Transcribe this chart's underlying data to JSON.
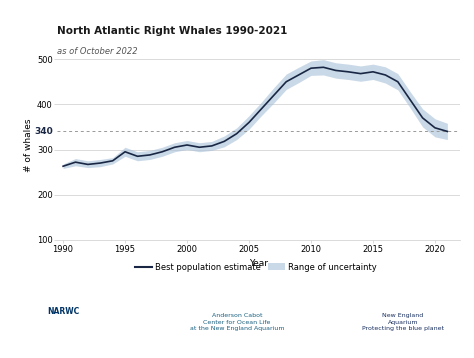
{
  "title": "North Atlantic Right Whales 1990-2021",
  "subtitle": "as of October 2022",
  "xlabel": "Year",
  "ylabel": "# of whales",
  "years": [
    1990,
    1991,
    1992,
    1993,
    1994,
    1995,
    1996,
    1997,
    1998,
    1999,
    2000,
    2001,
    2002,
    2003,
    2004,
    2005,
    2006,
    2007,
    2008,
    2009,
    2010,
    2011,
    2012,
    2013,
    2014,
    2015,
    2016,
    2017,
    2018,
    2019,
    2020,
    2021
  ],
  "best_estimate": [
    263,
    272,
    267,
    270,
    275,
    295,
    285,
    288,
    295,
    305,
    310,
    305,
    308,
    318,
    335,
    360,
    390,
    420,
    450,
    465,
    480,
    482,
    475,
    472,
    468,
    472,
    465,
    450,
    410,
    370,
    348,
    340
  ],
  "upper_bound": [
    268,
    280,
    275,
    278,
    282,
    305,
    295,
    298,
    305,
    315,
    320,
    315,
    318,
    330,
    348,
    375,
    405,
    437,
    467,
    482,
    496,
    499,
    492,
    489,
    485,
    489,
    483,
    468,
    428,
    390,
    368,
    358
  ],
  "lower_bound": [
    258,
    264,
    260,
    262,
    268,
    285,
    275,
    278,
    285,
    295,
    300,
    295,
    298,
    306,
    322,
    345,
    375,
    403,
    433,
    448,
    464,
    465,
    458,
    455,
    451,
    455,
    447,
    432,
    392,
    350,
    328,
    322
  ],
  "dashed_line_value": 340,
  "ylim": [
    100,
    520
  ],
  "yticks": [
    100,
    200,
    300,
    400,
    500
  ],
  "xticks": [
    1990,
    1995,
    2000,
    2005,
    2010,
    2015,
    2020
  ],
  "line_color": "#1a2744",
  "fill_color": "#a8c0d8",
  "dashed_color": "#999999",
  "background_color": "#ffffff",
  "grid_color": "#cccccc",
  "title_fontsize": 7.5,
  "subtitle_fontsize": 6,
  "axis_label_fontsize": 6.5,
  "tick_fontsize": 6,
  "dashed_label": "340",
  "legend_line_label": "Best population estimate",
  "legend_fill_label": "Range of uncertainty",
  "narwc_text": "NARWC",
  "anderson_text": "Anderson Cabot\nCenter for Ocean Life\nat the New England Aquarium",
  "nea_text": "New England\nAquarium\nProtecting the blue planet"
}
